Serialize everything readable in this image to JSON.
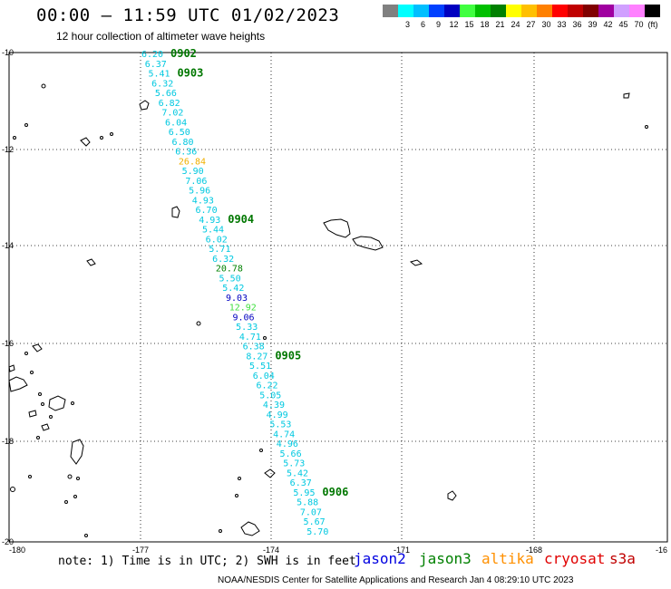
{
  "header": {
    "title": "00:00 – 11:59 UTC 01/02/2023",
    "subtitle": "12 hour collection of altimeter wave heights"
  },
  "legend": {
    "unit": "(ft)",
    "bins": [
      {
        "label": "",
        "color": "#808080"
      },
      {
        "label": "3",
        "color": "#00ffff"
      },
      {
        "label": "6",
        "color": "#00bfff"
      },
      {
        "label": "9",
        "color": "#0040ff"
      },
      {
        "label": "12",
        "color": "#0000c0"
      },
      {
        "label": "15",
        "color": "#40ff40"
      },
      {
        "label": "18",
        "color": "#00c000"
      },
      {
        "label": "21",
        "color": "#008000"
      },
      {
        "label": "24",
        "color": "#ffff00"
      },
      {
        "label": "27",
        "color": "#ffc000"
      },
      {
        "label": "30",
        "color": "#ff8000"
      },
      {
        "label": "33",
        "color": "#ff0000"
      },
      {
        "label": "36",
        "color": "#c00000"
      },
      {
        "label": "39",
        "color": "#800000"
      },
      {
        "label": "42",
        "color": "#a000a0"
      },
      {
        "label": "45",
        "color": "#d0a0ff"
      },
      {
        "label": "70",
        "color": "#ff80ff"
      },
      {
        "label": "",
        "color": "#000000"
      }
    ]
  },
  "axes": {
    "lat_labels": [
      "-10",
      "-12",
      "-14",
      "-16",
      "-18",
      "-20"
    ],
    "lon_labels": [
      "-180",
      "-177",
      "-174",
      "-171",
      "-168",
      "-16"
    ]
  },
  "track_data": {
    "satellite_color": "#00c8e0",
    "observations": [
      {
        "value": "6.20",
        "color": "#00c8e0"
      },
      {
        "value": "6.37",
        "color": "#00c8e0"
      },
      {
        "value": "5.41",
        "color": "#00c8e0"
      },
      {
        "value": "6.32",
        "color": "#00c8e0"
      },
      {
        "value": "5.66",
        "color": "#00c8e0"
      },
      {
        "value": "6.82",
        "color": "#00c8e0"
      },
      {
        "value": "7.02",
        "color": "#00c8e0"
      },
      {
        "value": "6.04",
        "color": "#00c8e0"
      },
      {
        "value": "6.50",
        "color": "#00c8e0"
      },
      {
        "value": "6.80",
        "color": "#00c8e0"
      },
      {
        "value": "6.36",
        "color": "#00c8e0"
      },
      {
        "value": "26.84",
        "color": "#f0b000"
      },
      {
        "value": "5.90",
        "color": "#00c8e0"
      },
      {
        "value": "7.06",
        "color": "#00c8e0"
      },
      {
        "value": "5.96",
        "color": "#00c8e0"
      },
      {
        "value": "4.93",
        "color": "#00c8e0"
      },
      {
        "value": "6.70",
        "color": "#00c8e0"
      },
      {
        "value": "4.93",
        "color": "#00c8e0"
      },
      {
        "value": "5.44",
        "color": "#00c8e0"
      },
      {
        "value": "6.02",
        "color": "#00c8e0"
      },
      {
        "value": "5.71",
        "color": "#00c8e0"
      },
      {
        "value": "6.32",
        "color": "#00c8e0"
      },
      {
        "value": "20.78",
        "color": "#008000"
      },
      {
        "value": "5.50",
        "color": "#00c8e0"
      },
      {
        "value": "5.42",
        "color": "#00c8e0"
      },
      {
        "value": "9.03",
        "color": "#0000c0"
      },
      {
        "value": "12.92",
        "color": "#40e040"
      },
      {
        "value": "9.06",
        "color": "#0000c0"
      },
      {
        "value": "5.33",
        "color": "#00c8e0"
      },
      {
        "value": "4.71",
        "color": "#00c8e0"
      },
      {
        "value": "6.38",
        "color": "#00c8e0"
      },
      {
        "value": "8.27",
        "color": "#00c8e0"
      },
      {
        "value": "5.51",
        "color": "#00c8e0"
      },
      {
        "value": "6.04",
        "color": "#00c8e0"
      },
      {
        "value": "6.22",
        "color": "#00c8e0"
      },
      {
        "value": "5.05",
        "color": "#00c8e0"
      },
      {
        "value": "4.39",
        "color": "#00c8e0"
      },
      {
        "value": "4.99",
        "color": "#00c8e0"
      },
      {
        "value": "5.53",
        "color": "#00c8e0"
      },
      {
        "value": "4.74",
        "color": "#00c8e0"
      },
      {
        "value": "4.96",
        "color": "#00c8e0"
      },
      {
        "value": "5.66",
        "color": "#00c8e0"
      },
      {
        "value": "5.73",
        "color": "#00c8e0"
      },
      {
        "value": "5.42",
        "color": "#00c8e0"
      },
      {
        "value": "6.37",
        "color": "#00c8e0"
      },
      {
        "value": "5.95",
        "color": "#00c8e0"
      },
      {
        "value": "5.88",
        "color": "#00c8e0"
      },
      {
        "value": "7.07",
        "color": "#00c8e0"
      },
      {
        "value": "5.67",
        "color": "#00c8e0"
      },
      {
        "value": "5.70",
        "color": "#00c8e0"
      }
    ],
    "time_marks": [
      {
        "label": "0902",
        "obs_index": 0
      },
      {
        "label": "0903",
        "obs_index": 2
      },
      {
        "label": "0904",
        "obs_index": 17
      },
      {
        "label": "0905",
        "obs_index": 31
      },
      {
        "label": "0906",
        "obs_index": 45
      }
    ]
  },
  "footer": {
    "note": "note: 1) Time is in UTC; 2) SWH is in feet",
    "satellites": [
      {
        "name": "jason2",
        "color": "#0000e0"
      },
      {
        "name": "jason3",
        "color": "#008000"
      },
      {
        "name": "altika",
        "color": "#ff9000"
      },
      {
        "name": "cryosat",
        "color": "#e00000"
      },
      {
        "name": "s3a",
        "color": "#c00000"
      }
    ],
    "credit": "NOAA/NESDIS Center for Satellite Applications and Research   Jan  4 08:29:10 UTC 2023"
  }
}
